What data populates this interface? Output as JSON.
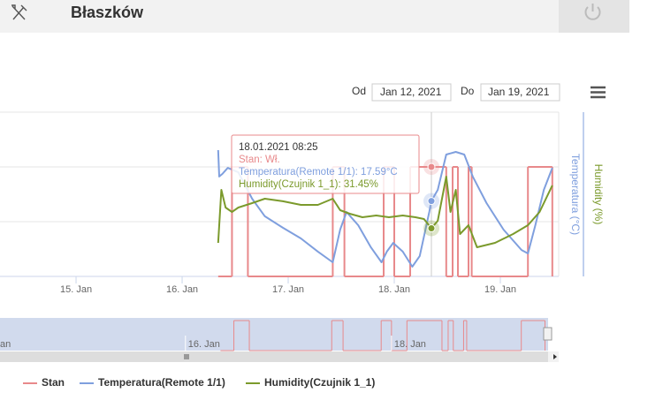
{
  "header": {
    "title": "Błaszków"
  },
  "date_range": {
    "from_label": "Od",
    "from": "Jan 12, 2021",
    "to_label": "Do",
    "to": "Jan 19, 2021"
  },
  "tooltip": {
    "title": "18.01.2021 08:25",
    "lines": [
      "Stan: Wł.",
      "Temperatura(Remote 1/1): 17.59°C",
      "Humidity(Czujnik 1_1): 31.45%"
    ]
  },
  "chart_data": {
    "type": "line",
    "xlim": [
      14.283,
      19.55
    ],
    "xticks": [
      {
        "value": 15,
        "label": "15. Jan"
      },
      {
        "value": 16,
        "label": "16. Jan"
      },
      {
        "value": 17,
        "label": "17. Jan"
      },
      {
        "value": 18,
        "label": "18. Jan"
      },
      {
        "value": 19,
        "label": "19. Jan"
      }
    ],
    "ylim": [
      0,
      1.5
    ],
    "yticks": [
      0,
      0.5,
      1,
      1.5
    ],
    "y2lim": [
      13,
      23
    ],
    "y2_label": "Temperatura (°C)",
    "y3lim": [
      25,
      47
    ],
    "y3_label": "Humidity (%)",
    "grid": true,
    "series": [
      {
        "name": "Stan",
        "color": "#e8898b",
        "step": true,
        "x": [
          16.34,
          16.47,
          16.62,
          17.42,
          17.53,
          17.9,
          18.0,
          18.15,
          18.49,
          18.55,
          18.6,
          18.7,
          18.73,
          19.26,
          19.49
        ],
        "values": [
          0,
          1,
          0,
          1,
          0,
          1,
          0,
          1,
          0,
          1,
          0,
          1,
          0,
          1,
          0
        ]
      },
      {
        "name": "Temperatura(Remote 1/1)",
        "color": "#7f9fde",
        "axis": "y2",
        "x": [
          16.34,
          16.35,
          16.38,
          16.43,
          16.53,
          16.66,
          16.78,
          16.95,
          17.12,
          17.28,
          17.42,
          17.49,
          17.55,
          17.66,
          17.78,
          17.88,
          17.93,
          17.99,
          18.08,
          18.17,
          18.24,
          18.33,
          18.35,
          18.41,
          18.49,
          18.58,
          18.66,
          18.74,
          18.87,
          19.03,
          19.2,
          19.26,
          19.33,
          19.41,
          19.49
        ],
        "values": [
          20.69,
          19.08,
          19.24,
          19.61,
          19.34,
          17.73,
          16.66,
          15.96,
          15.31,
          14.51,
          13.86,
          15.85,
          16.92,
          16.12,
          14.77,
          13.86,
          14.51,
          15.04,
          14.51,
          13.59,
          14.24,
          16.92,
          17.59,
          18.27,
          20.42,
          20.58,
          20.42,
          19.08,
          17.46,
          15.85,
          14.61,
          14.4,
          16.12,
          18.27,
          19.61
        ]
      },
      {
        "name": "Humidity(Czujnik 1_1)",
        "color": "#7b9a2c",
        "axis": "y3",
        "x": [
          16.34,
          16.37,
          16.41,
          16.47,
          16.53,
          16.66,
          16.78,
          16.95,
          17.12,
          17.28,
          17.42,
          17.49,
          17.58,
          17.7,
          17.83,
          17.95,
          18.08,
          18.2,
          18.28,
          18.35,
          18.41,
          18.49,
          18.53,
          18.58,
          18.62,
          18.7,
          18.78,
          18.95,
          19.12,
          19.26,
          19.37,
          19.49
        ],
        "values": [
          29.5,
          36.59,
          34.23,
          33.64,
          34.23,
          34.82,
          35.41,
          35.06,
          34.58,
          34.58,
          35.41,
          33.87,
          33.4,
          32.93,
          33.16,
          32.93,
          33.16,
          32.93,
          32.69,
          31.45,
          32.45,
          38.37,
          33.64,
          36.59,
          30.68,
          31.86,
          28.9,
          29.5,
          30.68,
          31.86,
          33.64,
          37.19
        ]
      }
    ],
    "navigator": {
      "xlim": [
        14.2,
        19.52
      ],
      "xticks": [
        {
          "value": 14,
          "label": "an"
        },
        {
          "value": 16,
          "label": "16. Jan"
        },
        {
          "value": 18,
          "label": "18. Jan"
        }
      ]
    }
  }
}
